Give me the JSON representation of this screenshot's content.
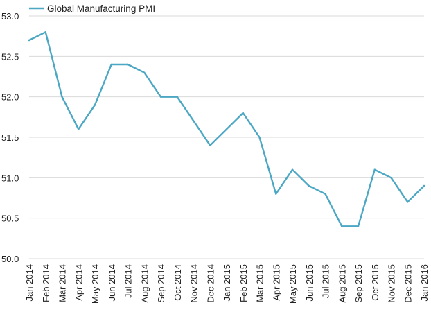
{
  "chart_data": {
    "type": "line",
    "categories": [
      "Jan 2014",
      "Feb 2014",
      "Mar 2014",
      "Apr 2014",
      "May 2014",
      "Jun 2014",
      "Jul 2014",
      "Aug 2014",
      "Sep 2014",
      "Oct 2014",
      "Nov 2014",
      "Dec 2014",
      "Jan 2015",
      "Feb 2015",
      "Mar 2015",
      "Apr 2015",
      "May 2015",
      "Jun 2015",
      "Jul 2015",
      "Aug 2015",
      "Sep 2015",
      "Oct 2015",
      "Nov 2015",
      "Dec 2015",
      "Jan 2016"
    ],
    "series": [
      {
        "name": "Global Manufacturing PMI",
        "color": "#4ba7c4",
        "values": [
          52.7,
          52.8,
          52.0,
          51.6,
          51.9,
          52.4,
          52.4,
          52.3,
          52.0,
          52.0,
          51.7,
          51.4,
          51.6,
          51.8,
          51.5,
          50.8,
          51.1,
          50.9,
          50.8,
          50.4,
          50.4,
          51.1,
          51.0,
          50.7,
          50.9
        ]
      }
    ],
    "ylim": [
      50.0,
      53.0
    ],
    "yticks": [
      "50.0",
      "50.5",
      "51.0",
      "51.5",
      "52.0",
      "52.5",
      "53.0"
    ],
    "grid": "horizontal",
    "legend": "top-left",
    "title": "",
    "xlabel": "",
    "ylabel": ""
  }
}
